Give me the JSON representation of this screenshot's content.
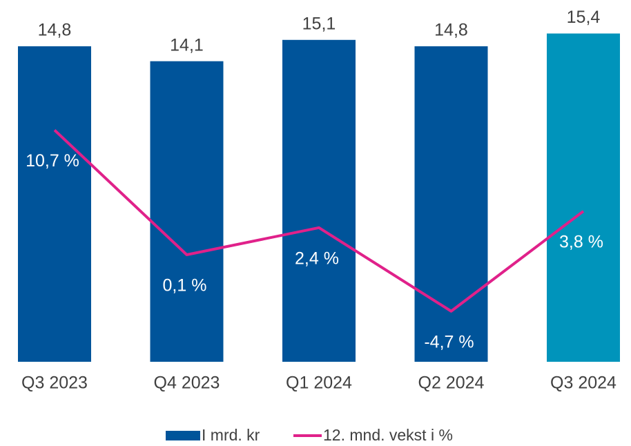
{
  "chart_data": {
    "type": "bar-line",
    "categories": [
      "Q3 2023",
      "Q4 2023",
      "Q1 2024",
      "Q2 2024",
      "Q3 2024"
    ],
    "series": [
      {
        "name": "I mrd. kr",
        "type": "bar",
        "color": "#00549a",
        "colors": [
          "#00549a",
          "#00549a",
          "#00549a",
          "#00549a",
          "#0094bb"
        ],
        "values": [
          14.8,
          14.1,
          15.1,
          14.8,
          15.4
        ],
        "value_labels": [
          "14,8",
          "14,1",
          "15,1",
          "14,8",
          "15,4"
        ]
      },
      {
        "name": "12. mnd. vekst i %",
        "type": "line",
        "axis": "y2",
        "color": "#e0218a",
        "values": [
          10.7,
          0.1,
          2.4,
          -4.7,
          3.8
        ],
        "value_labels": [
          "10,7 %",
          "0,1 %",
          "2,4 %",
          "-4,7 %",
          "3,8 %"
        ]
      }
    ],
    "ylim": [
      0,
      16
    ],
    "y2lim": [
      -9,
      20
    ],
    "legend": "bottom"
  }
}
